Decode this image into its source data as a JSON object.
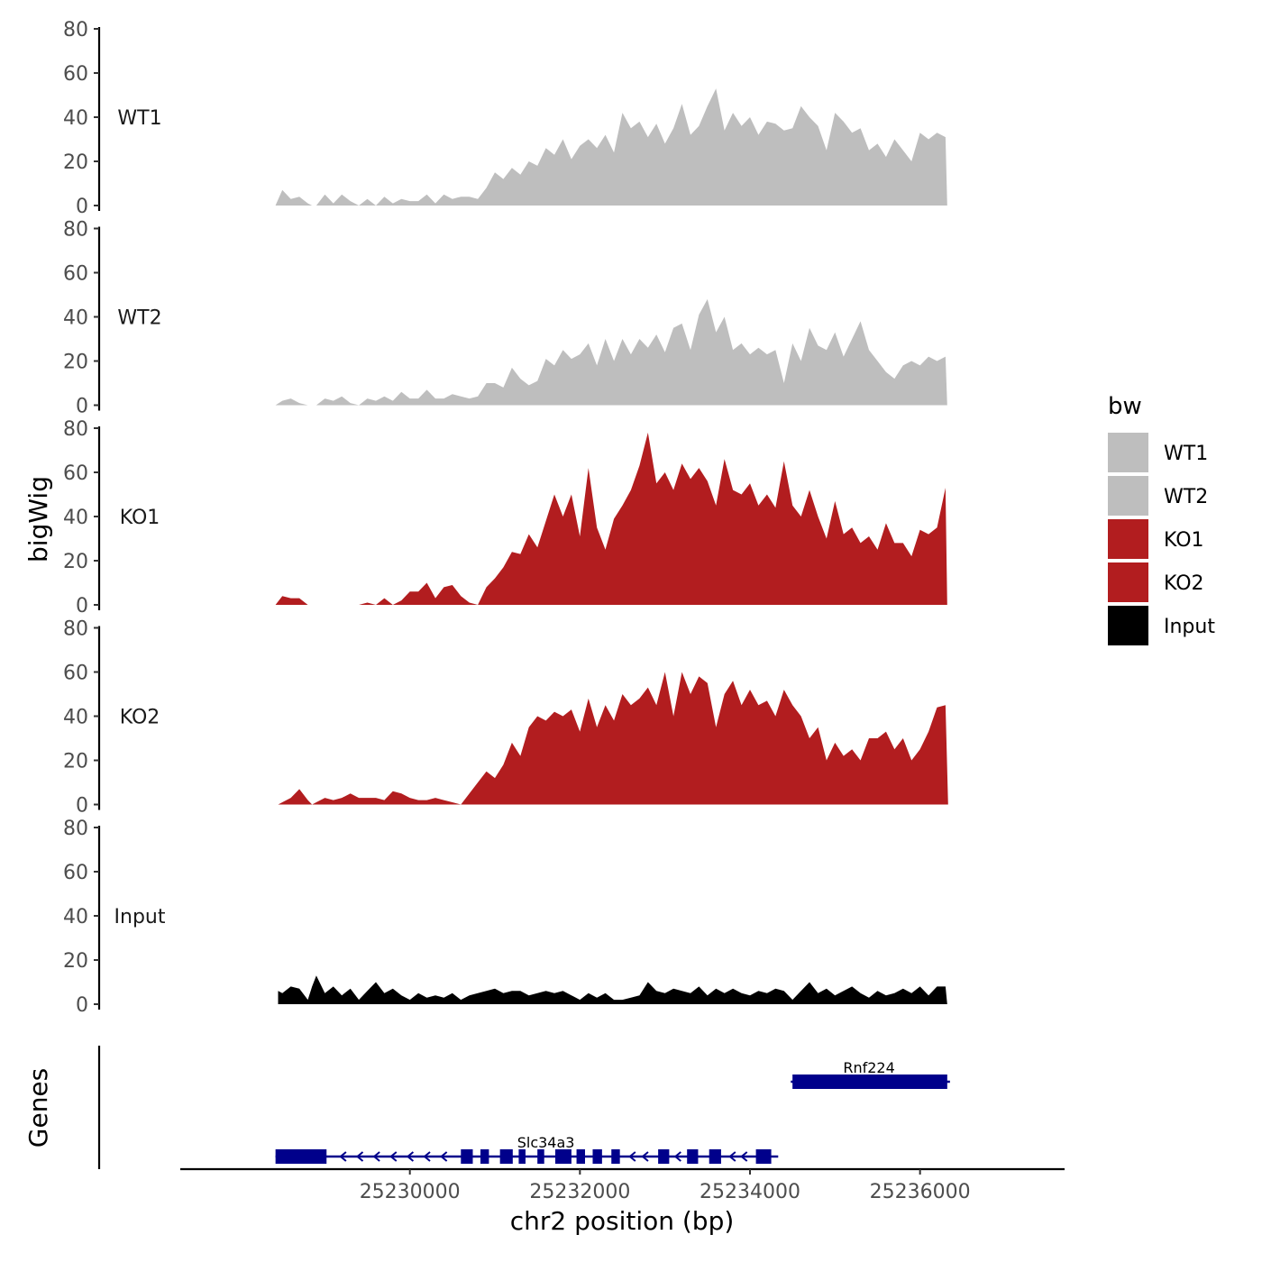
{
  "chart_data": {
    "type": "area",
    "x_label": "chr2 position (bp)",
    "y_label": "bigWig",
    "genes_label": "Genes",
    "xlim": [
      25227300,
      25237700
    ],
    "x_ticks": [
      25230000,
      25232000,
      25234000,
      25236000
    ],
    "ylim": [
      0,
      80
    ],
    "y_ticks": [
      0,
      20,
      40,
      60,
      80
    ],
    "legend": {
      "title": "bw",
      "entries": [
        {
          "name": "WT1",
          "color": "#bebebe"
        },
        {
          "name": "WT2",
          "color": "#bebebe"
        },
        {
          "name": "KO1",
          "color": "#b21d1f"
        },
        {
          "name": "KO2",
          "color": "#b21d1f"
        },
        {
          "name": "Input",
          "color": "#000000"
        }
      ]
    },
    "tracks": [
      {
        "name": "WT1",
        "color": "#bebebe",
        "x": [
          25228420,
          25228500,
          25228600,
          25228700,
          25228800,
          25228850,
          25228900,
          25229000,
          25229100,
          25229200,
          25229300,
          25229400,
          25229500,
          25229600,
          25229700,
          25229800,
          25229900,
          25230000,
          25230100,
          25230200,
          25230300,
          25230400,
          25230500,
          25230600,
          25230700,
          25230800,
          25230900,
          25231000,
          25231100,
          25231200,
          25231300,
          25231400,
          25231500,
          25231600,
          25231700,
          25231800,
          25231900,
          25232000,
          25232100,
          25232200,
          25232300,
          25232400,
          25232500,
          25232600,
          25232700,
          25232800,
          25232900,
          25233000,
          25233100,
          25233200,
          25233300,
          25233400,
          25233500,
          25233600,
          25233700,
          25233800,
          25233900,
          25234000,
          25234100,
          25234200,
          25234300,
          25234400,
          25234500,
          25234600,
          25234700,
          25234800,
          25234900,
          25235000,
          25235100,
          25235200,
          25235300,
          25235400,
          25235500,
          25235600,
          25235700,
          25235800,
          25235900,
          25236000,
          25236100,
          25236200,
          25236300,
          25236320
        ],
        "values": [
          0,
          7,
          3,
          4,
          1,
          0,
          0,
          5,
          1,
          5,
          2,
          0,
          3,
          0,
          4,
          1,
          3,
          2,
          2,
          5,
          1,
          5,
          3,
          4,
          4,
          3,
          8,
          15,
          12,
          17,
          14,
          20,
          18,
          26,
          23,
          30,
          21,
          27,
          30,
          26,
          32,
          24,
          42,
          35,
          38,
          31,
          37,
          28,
          35,
          46,
          32,
          36,
          45,
          53,
          34,
          42,
          36,
          40,
          32,
          38,
          37,
          34,
          35,
          45,
          40,
          36,
          25,
          42,
          38,
          33,
          35,
          25,
          28,
          22,
          30,
          25,
          20,
          33,
          30,
          33,
          31,
          0
        ]
      },
      {
        "name": "WT2",
        "color": "#bebebe",
        "x": [
          25228420,
          25228500,
          25228600,
          25228700,
          25228800,
          25228850,
          25228900,
          25229000,
          25229100,
          25229200,
          25229300,
          25229400,
          25229500,
          25229600,
          25229700,
          25229800,
          25229900,
          25230000,
          25230100,
          25230200,
          25230300,
          25230400,
          25230500,
          25230600,
          25230700,
          25230800,
          25230900,
          25231000,
          25231100,
          25231200,
          25231300,
          25231400,
          25231500,
          25231600,
          25231700,
          25231800,
          25231900,
          25232000,
          25232100,
          25232200,
          25232300,
          25232400,
          25232500,
          25232600,
          25232700,
          25232800,
          25232900,
          25233000,
          25233100,
          25233200,
          25233300,
          25233400,
          25233500,
          25233600,
          25233700,
          25233800,
          25233900,
          25234000,
          25234100,
          25234200,
          25234300,
          25234400,
          25234500,
          25234600,
          25234700,
          25234800,
          25234900,
          25235000,
          25235100,
          25235200,
          25235300,
          25235400,
          25235500,
          25235600,
          25235700,
          25235800,
          25235900,
          25236000,
          25236100,
          25236200,
          25236300,
          25236320
        ],
        "values": [
          0,
          2,
          3,
          1,
          0,
          0,
          0,
          3,
          2,
          4,
          1,
          0,
          3,
          2,
          4,
          2,
          6,
          3,
          3,
          7,
          3,
          3,
          5,
          4,
          3,
          4,
          10,
          10,
          8,
          17,
          12,
          9,
          11,
          21,
          18,
          25,
          21,
          23,
          28,
          18,
          30,
          20,
          30,
          23,
          30,
          26,
          32,
          24,
          35,
          37,
          25,
          41,
          48,
          33,
          40,
          25,
          28,
          23,
          26,
          23,
          25,
          10,
          28,
          20,
          35,
          27,
          25,
          33,
          22,
          30,
          38,
          25,
          20,
          15,
          12,
          18,
          20,
          18,
          22,
          20,
          22,
          0
        ]
      },
      {
        "name": "KO1",
        "color": "#b21d1f",
        "x": [
          25228420,
          25228500,
          25228600,
          25228700,
          25228800,
          25228850,
          25228900,
          25229000,
          25229100,
          25229200,
          25229300,
          25229400,
          25229500,
          25229600,
          25229700,
          25229800,
          25229900,
          25230000,
          25230100,
          25230200,
          25230300,
          25230400,
          25230500,
          25230600,
          25230700,
          25230800,
          25230900,
          25231000,
          25231100,
          25231200,
          25231300,
          25231400,
          25231500,
          25231600,
          25231700,
          25231800,
          25231900,
          25232000,
          25232100,
          25232200,
          25232300,
          25232400,
          25232500,
          25232600,
          25232700,
          25232800,
          25232900,
          25233000,
          25233100,
          25233200,
          25233300,
          25233400,
          25233500,
          25233600,
          25233700,
          25233800,
          25233900,
          25234000,
          25234100,
          25234200,
          25234300,
          25234400,
          25234500,
          25234600,
          25234700,
          25234800,
          25234900,
          25235000,
          25235100,
          25235200,
          25235300,
          25235400,
          25235500,
          25235600,
          25235700,
          25235800,
          25235900,
          25236000,
          25236100,
          25236200,
          25236300,
          25236320
        ],
        "values": [
          0,
          4,
          3,
          3,
          0,
          0,
          0,
          0,
          0,
          0,
          0,
          0,
          1,
          0,
          3,
          0,
          2,
          6,
          6,
          10,
          3,
          8,
          9,
          4,
          1,
          0,
          8,
          12,
          17,
          24,
          23,
          32,
          26,
          38,
          50,
          40,
          50,
          31,
          62,
          35,
          25,
          39,
          45,
          52,
          63,
          78,
          55,
          60,
          52,
          64,
          57,
          62,
          56,
          45,
          66,
          52,
          50,
          55,
          45,
          50,
          44,
          65,
          45,
          40,
          52,
          40,
          30,
          47,
          32,
          35,
          28,
          31,
          25,
          37,
          28,
          28,
          22,
          34,
          32,
          35,
          53,
          0
        ]
      },
      {
        "name": "KO2",
        "color": "#b21d1f",
        "x": [
          25228450,
          25228500,
          25228600,
          25228700,
          25228800,
          25228850,
          25228900,
          25229000,
          25229100,
          25229200,
          25229300,
          25229400,
          25229500,
          25229600,
          25229700,
          25229800,
          25229900,
          25230000,
          25230100,
          25230200,
          25230300,
          25230400,
          25230500,
          25230600,
          25230700,
          25230800,
          25230900,
          25231000,
          25231100,
          25231200,
          25231300,
          25231400,
          25231500,
          25231600,
          25231700,
          25231800,
          25231900,
          25232000,
          25232100,
          25232200,
          25232300,
          25232400,
          25232500,
          25232600,
          25232700,
          25232800,
          25232900,
          25233000,
          25233100,
          25233200,
          25233300,
          25233400,
          25233500,
          25233600,
          25233700,
          25233800,
          25233900,
          25234000,
          25234100,
          25234200,
          25234300,
          25234400,
          25234500,
          25234600,
          25234700,
          25234800,
          25234900,
          25235000,
          25235100,
          25235200,
          25235300,
          25235400,
          25235500,
          25235600,
          25235700,
          25235800,
          25235900,
          25236000,
          25236100,
          25236200,
          25236300,
          25236330
        ],
        "values": [
          0,
          1,
          3,
          7,
          2,
          0,
          1,
          3,
          2,
          3,
          5,
          3,
          3,
          3,
          2,
          6,
          5,
          3,
          2,
          2,
          3,
          2,
          1,
          0,
          5,
          10,
          15,
          12,
          18,
          28,
          22,
          35,
          40,
          38,
          42,
          40,
          43,
          33,
          48,
          35,
          45,
          38,
          50,
          45,
          48,
          53,
          45,
          60,
          40,
          60,
          50,
          58,
          55,
          35,
          50,
          56,
          45,
          52,
          45,
          47,
          40,
          52,
          45,
          40,
          30,
          35,
          20,
          28,
          22,
          25,
          20,
          30,
          30,
          33,
          25,
          30,
          20,
          25,
          33,
          44,
          45,
          0
        ]
      },
      {
        "name": "Input",
        "color": "#000000",
        "x": [
          25228450,
          25228500,
          25228600,
          25228700,
          25228800,
          25228850,
          25228900,
          25229000,
          25229100,
          25229200,
          25229300,
          25229400,
          25229500,
          25229600,
          25229700,
          25229800,
          25229900,
          25230000,
          25230100,
          25230200,
          25230300,
          25230400,
          25230500,
          25230600,
          25230700,
          25230800,
          25230900,
          25231000,
          25231100,
          25231200,
          25231300,
          25231400,
          25231500,
          25231600,
          25231700,
          25231800,
          25231900,
          25232000,
          25232100,
          25232200,
          25232300,
          25232400,
          25232500,
          25232600,
          25232700,
          25232800,
          25232900,
          25233000,
          25233100,
          25233200,
          25233300,
          25233400,
          25233500,
          25233600,
          25233700,
          25233800,
          25233900,
          25234000,
          25234100,
          25234200,
          25234300,
          25234400,
          25234500,
          25234600,
          25234700,
          25234800,
          25234900,
          25235000,
          25235100,
          25235200,
          25235300,
          25235400,
          25235500,
          25235600,
          25235700,
          25235800,
          25235900,
          25236000,
          25236100,
          25236200,
          25236300,
          25236320
        ],
        "values": [
          6,
          5,
          8,
          7,
          2,
          8,
          13,
          5,
          8,
          4,
          7,
          2,
          6,
          10,
          5,
          7,
          4,
          2,
          5,
          3,
          4,
          3,
          5,
          2,
          4,
          5,
          6,
          7,
          5,
          6,
          6,
          4,
          5,
          6,
          5,
          6,
          4,
          2,
          5,
          3,
          5,
          2,
          2,
          3,
          4,
          10,
          6,
          5,
          7,
          6,
          5,
          8,
          4,
          7,
          5,
          7,
          5,
          4,
          6,
          5,
          7,
          6,
          2,
          6,
          10,
          5,
          7,
          4,
          6,
          8,
          5,
          3,
          6,
          4,
          5,
          7,
          5,
          8,
          4,
          8,
          8,
          0
        ]
      }
    ],
    "genes": [
      {
        "name": "Slc34a3",
        "strand": "-",
        "color": "#00008b",
        "start": 25228420,
        "end": 25234300,
        "exons": [
          [
            25228420,
            25229020
          ],
          [
            25230600,
            25230740
          ],
          [
            25230830,
            25230930
          ],
          [
            25231060,
            25231210
          ],
          [
            25231280,
            25231360
          ],
          [
            25231500,
            25231580
          ],
          [
            25231710,
            25231900
          ],
          [
            25231960,
            25232060
          ],
          [
            25232150,
            25232260
          ],
          [
            25232370,
            25232470
          ],
          [
            25232920,
            25233050
          ],
          [
            25233260,
            25233390
          ],
          [
            25233520,
            25233660
          ],
          [
            25234070,
            25234250
          ]
        ]
      },
      {
        "name": "Rnf224",
        "strand": "+",
        "color": "#00008b",
        "start": 25234480,
        "end": 25236320,
        "exons": [
          [
            25234500,
            25236320
          ]
        ]
      }
    ]
  }
}
